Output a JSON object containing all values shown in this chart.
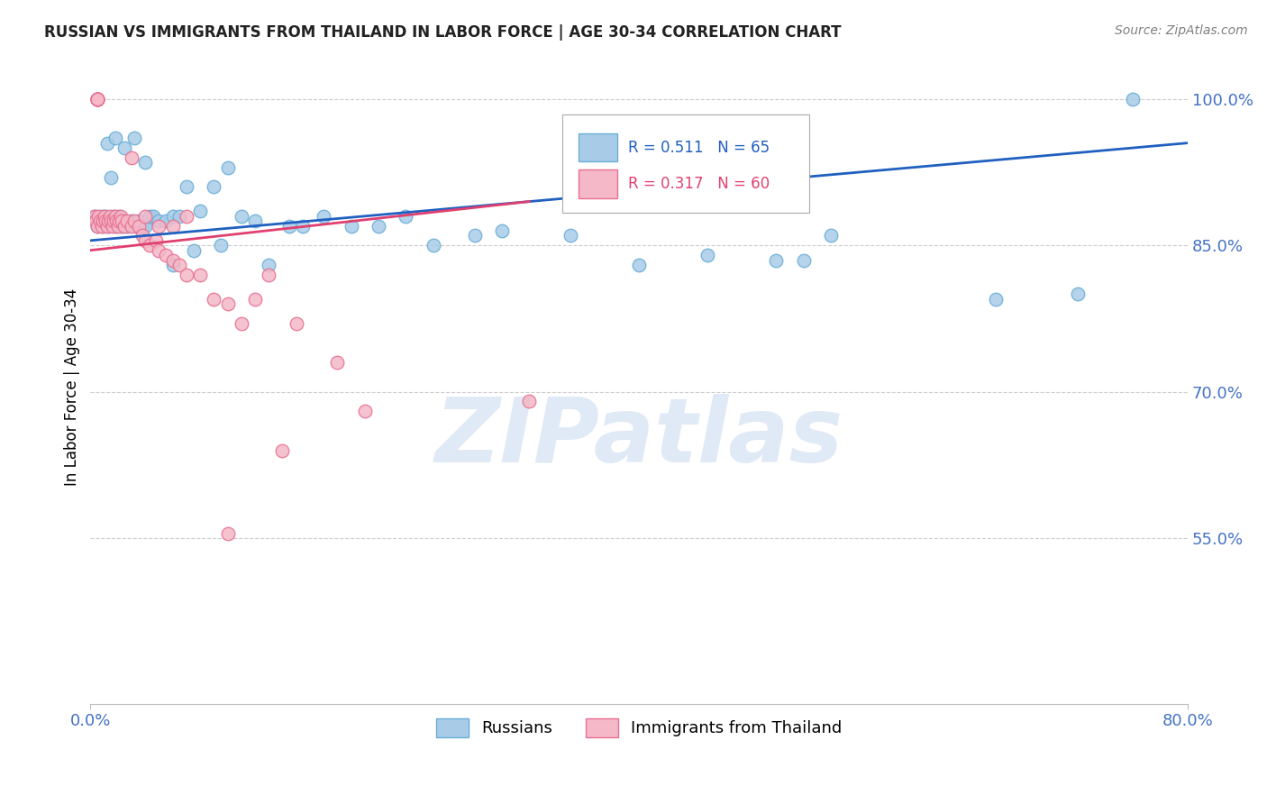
{
  "title": "RUSSIAN VS IMMIGRANTS FROM THAILAND IN LABOR FORCE | AGE 30-34 CORRELATION CHART",
  "source": "Source: ZipAtlas.com",
  "ylabel": "In Labor Force | Age 30-34",
  "x_min": 0.0,
  "x_max": 0.8,
  "y_min": 0.38,
  "y_max": 1.03,
  "y_ticks": [
    1.0,
    0.85,
    0.7,
    0.55
  ],
  "y_tick_labels": [
    "100.0%",
    "85.0%",
    "70.0%",
    "55.0%"
  ],
  "x_tick_labels_show": [
    "0.0%",
    "80.0%"
  ],
  "x_tick_positions_show": [
    0.0,
    0.8
  ],
  "blue_color": "#a8cce8",
  "pink_color": "#f4b8c8",
  "blue_edge": "#6aaed6",
  "pink_edge": "#e87090",
  "trend_blue": "#2060c0",
  "trend_pink": "#e04070",
  "R_blue": 0.511,
  "N_blue": 65,
  "R_pink": 0.317,
  "N_pink": 60,
  "legend_label_blue": "Russians",
  "legend_label_pink": "Immigrants from Thailand",
  "watermark": "ZIPatlas",
  "watermark_color": "#c8d8f0",
  "grid_color": "#cccccc",
  "axis_label_color": "#4472c4",
  "title_color": "#222222",
  "blue_scatter_x": [
    0.003,
    0.005,
    0.007,
    0.008,
    0.009,
    0.01,
    0.011,
    0.012,
    0.013,
    0.014,
    0.015,
    0.016,
    0.017,
    0.018,
    0.019,
    0.02,
    0.021,
    0.022,
    0.023,
    0.025,
    0.027,
    0.03,
    0.033,
    0.035,
    0.038,
    0.04,
    0.043,
    0.046,
    0.05,
    0.055,
    0.06,
    0.065,
    0.07,
    0.08,
    0.09,
    0.1,
    0.11,
    0.12,
    0.13,
    0.145,
    0.155,
    0.17,
    0.19,
    0.21,
    0.23,
    0.25,
    0.28,
    0.3,
    0.35,
    0.4,
    0.45,
    0.5,
    0.52,
    0.54,
    0.66,
    0.72,
    0.76,
    0.012,
    0.018,
    0.025,
    0.032,
    0.04,
    0.06,
    0.075,
    0.095
  ],
  "blue_scatter_y": [
    0.88,
    0.87,
    0.875,
    0.88,
    0.87,
    0.875,
    0.88,
    0.875,
    0.87,
    0.875,
    0.92,
    0.875,
    0.88,
    0.875,
    0.87,
    0.875,
    0.88,
    0.875,
    0.87,
    0.875,
    0.87,
    0.875,
    0.87,
    0.875,
    0.87,
    0.87,
    0.88,
    0.88,
    0.875,
    0.875,
    0.88,
    0.88,
    0.91,
    0.885,
    0.91,
    0.93,
    0.88,
    0.875,
    0.83,
    0.87,
    0.87,
    0.88,
    0.87,
    0.87,
    0.88,
    0.85,
    0.86,
    0.865,
    0.86,
    0.83,
    0.84,
    0.835,
    0.835,
    0.86,
    0.795,
    0.8,
    1.0,
    0.955,
    0.96,
    0.95,
    0.96,
    0.935,
    0.83,
    0.845,
    0.85
  ],
  "pink_scatter_x": [
    0.003,
    0.004,
    0.005,
    0.006,
    0.007,
    0.008,
    0.009,
    0.01,
    0.011,
    0.012,
    0.013,
    0.014,
    0.015,
    0.016,
    0.017,
    0.018,
    0.019,
    0.02,
    0.021,
    0.022,
    0.023,
    0.025,
    0.027,
    0.03,
    0.032,
    0.035,
    0.038,
    0.04,
    0.043,
    0.048,
    0.05,
    0.055,
    0.06,
    0.065,
    0.07,
    0.08,
    0.09,
    0.1,
    0.11,
    0.12,
    0.005,
    0.005,
    0.005,
    0.005,
    0.005,
    0.005,
    0.005,
    0.005,
    0.03,
    0.04,
    0.05,
    0.06,
    0.07,
    0.13,
    0.15,
    0.18,
    0.2,
    0.14,
    0.32,
    0.1
  ],
  "pink_scatter_y": [
    0.88,
    0.875,
    0.87,
    0.88,
    0.875,
    0.87,
    0.875,
    0.88,
    0.875,
    0.87,
    0.875,
    0.88,
    0.875,
    0.87,
    0.875,
    0.88,
    0.875,
    0.87,
    0.875,
    0.88,
    0.875,
    0.87,
    0.875,
    0.87,
    0.875,
    0.87,
    0.86,
    0.855,
    0.85,
    0.855,
    0.845,
    0.84,
    0.835,
    0.83,
    0.82,
    0.82,
    0.795,
    0.79,
    0.77,
    0.795,
    1.0,
    1.0,
    1.0,
    1.0,
    1.0,
    1.0,
    1.0,
    1.0,
    0.94,
    0.88,
    0.87,
    0.87,
    0.88,
    0.82,
    0.77,
    0.73,
    0.68,
    0.64,
    0.69,
    0.555
  ]
}
